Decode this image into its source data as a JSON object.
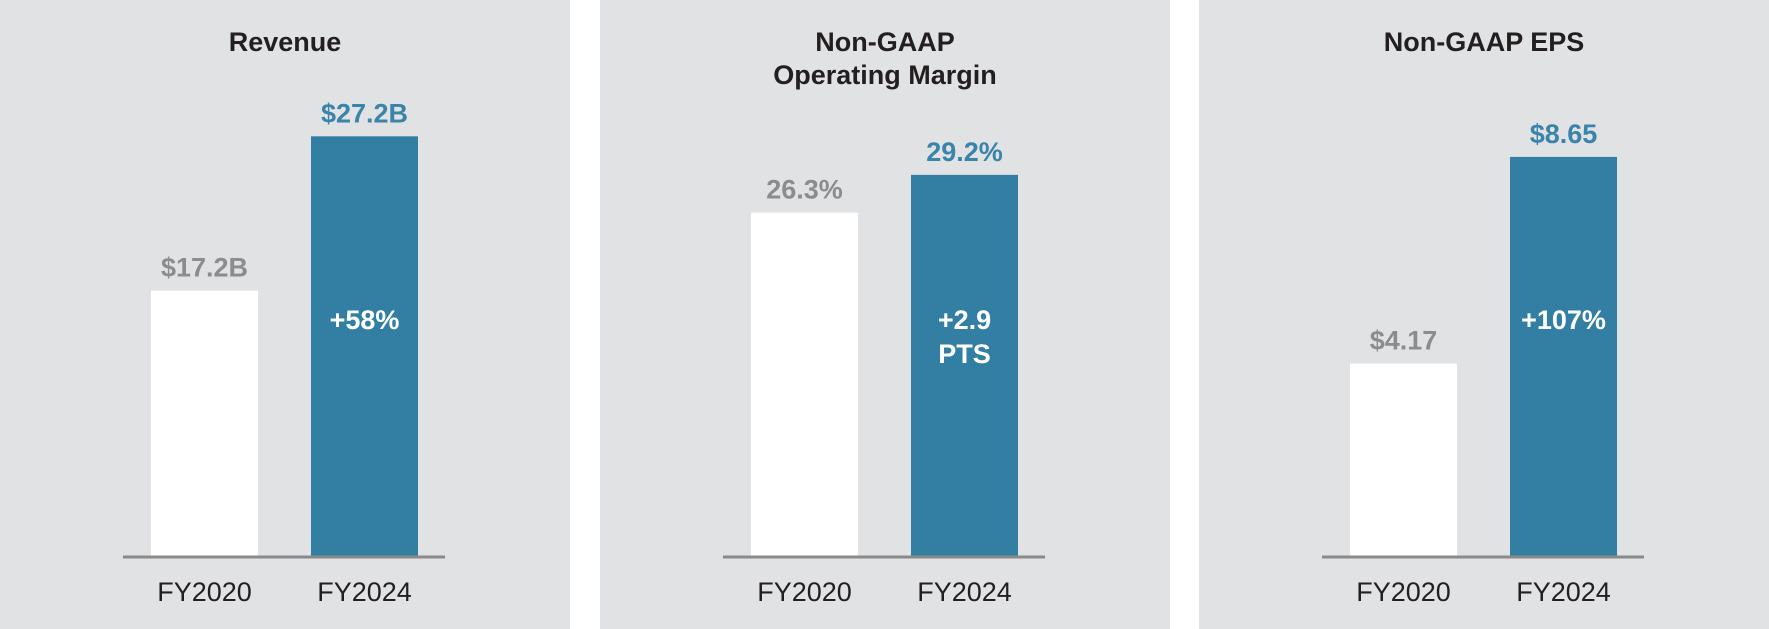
{
  "colors": {
    "panel_bg": "#e1e2e4",
    "baseline": "#8a8a8a",
    "base_bar": "#ffffff",
    "highlight_bar": "#337fa4",
    "base_label": "#8c8c8c",
    "highlight_label": "#3a83aa",
    "change_label": "#ffffff",
    "category_label": "#231f20"
  },
  "chart_data": [
    {
      "type": "bar",
      "title": "Revenue",
      "categories": [
        "FY2020",
        "FY2024"
      ],
      "values": [
        17.2,
        27.2
      ],
      "value_labels": [
        "$17.2B",
        "$27.2B"
      ],
      "change_label": [
        "+58%"
      ],
      "ylim": [
        0,
        30.2
      ]
    },
    {
      "type": "bar",
      "title": "Non-GAAP Operating Margin",
      "title_lines": [
        "Non-GAAP",
        "Operating Margin"
      ],
      "categories": [
        "FY2020",
        "FY2024"
      ],
      "values": [
        26.3,
        29.2
      ],
      "value_labels": [
        "26.3%",
        "29.2%"
      ],
      "change_label": [
        "+2.9",
        "PTS"
      ],
      "ylim": [
        0,
        35.7
      ]
    },
    {
      "type": "bar",
      "title": "Non-GAAP EPS",
      "categories": [
        "FY2020",
        "FY2024"
      ],
      "values": [
        4.17,
        8.65
      ],
      "value_labels": [
        "$4.17",
        "$8.65"
      ],
      "change_label": [
        "+107%"
      ],
      "ylim": [
        0,
        10.1
      ]
    }
  ]
}
